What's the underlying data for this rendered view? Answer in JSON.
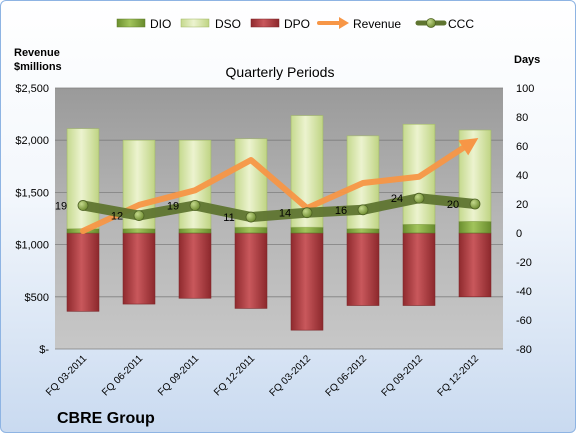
{
  "chart_data": {
    "type": "bar",
    "title": "Quarterly Periods",
    "company": "CBRE Group",
    "left_axis_title_lines": [
      "Revenue",
      "$millions"
    ],
    "right_axis_title": "Days",
    "left_axis": {
      "min": 0,
      "max": 2500,
      "step": 500,
      "tick_labels": [
        "$-",
        "$500",
        "$1,000",
        "$1,500",
        "$2,000",
        "$2,500"
      ]
    },
    "right_axis": {
      "min": -80,
      "max": 100,
      "step": 20,
      "tick_labels": [
        "-80",
        "-60",
        "-40",
        "-20",
        "0",
        "20",
        "40",
        "60",
        "80",
        "100"
      ]
    },
    "categories": [
      "FQ 03-2011",
      "FQ 06-2011",
      "FQ 09-2011",
      "FQ 12-2011",
      "FQ 03-2012",
      "FQ 06-2012",
      "FQ 09-2012",
      "FQ 12-2012"
    ],
    "legend": [
      "DIO",
      "DSO",
      "DPO",
      "Revenue",
      "CCC"
    ],
    "series": [
      {
        "name": "DIO",
        "axis": "days",
        "values": [
          3,
          3,
          3,
          4,
          4,
          3,
          6,
          8
        ]
      },
      {
        "name": "DSO",
        "axis": "days",
        "values": [
          69,
          61,
          61,
          61,
          77,
          64,
          69,
          63
        ]
      },
      {
        "name": "DPO",
        "axis": "days",
        "values": [
          -54,
          -49,
          -45,
          -52,
          -67,
          -50,
          -50,
          -44
        ]
      },
      {
        "name": "Revenue",
        "axis": "revenue",
        "values": [
          1130,
          1380,
          1520,
          1810,
          1350,
          1590,
          1650,
          2000
        ]
      },
      {
        "name": "CCC",
        "axis": "days",
        "values": [
          19,
          12,
          19,
          11,
          14,
          16,
          24,
          20
        ]
      }
    ],
    "ccc_labels": [
      "19",
      "12",
      "19",
      "11",
      "14",
      "16",
      "24",
      "20"
    ],
    "grid": true,
    "legend_position": "top",
    "colors": {
      "DIO": "#7ea33e",
      "DSO": "#d7e4a6",
      "DPO": "#b3353a",
      "Revenue": "#f79646",
      "CCC": "#5f7530",
      "plot_background": "#ababab"
    }
  }
}
